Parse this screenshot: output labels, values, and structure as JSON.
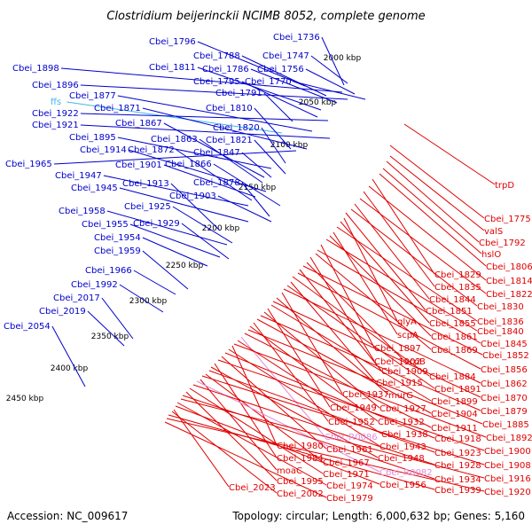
{
  "title": "Clostridium beijerinckii NCIMB 8052, complete genome",
  "accession_text": "Accession: NC_009617",
  "summary_text": "Topology: circular; Length: 6,000,632 bp; Genes: 5,160",
  "colors": {
    "reverse_label": "#0000cc",
    "forward_label": "#e00000",
    "rna_label": "#e38ad8",
    "trna_label": "#3fb8e8",
    "backbone": "#9a9a9a",
    "ruler_dots": "#2e8b2e"
  },
  "ruler": [
    {
      "label": "2000 kbp"
    },
    {
      "label": "2050 kbp"
    },
    {
      "label": "2100 kbp"
    },
    {
      "label": "2150 kbp"
    },
    {
      "label": "2200 kbp"
    },
    {
      "label": "2250 kbp"
    },
    {
      "label": "2300 kbp"
    },
    {
      "label": "2350 kbp"
    },
    {
      "label": "2400 kbp"
    },
    {
      "label": "2450 kbp"
    }
  ],
  "left_labels": [
    {
      "text": "Cbei_1736",
      "kind": "cds"
    },
    {
      "text": "Cbei_1796",
      "kind": "cds"
    },
    {
      "text": "Cbei_1788",
      "kind": "cds"
    },
    {
      "text": "Cbei_1747",
      "kind": "cds"
    },
    {
      "text": "Cbei_1811",
      "kind": "cds"
    },
    {
      "text": "Cbei_1786",
      "kind": "cds"
    },
    {
      "text": "Cbei_1756",
      "kind": "cds"
    },
    {
      "text": "Cbei_1898",
      "kind": "cds"
    },
    {
      "text": "Cbei_1795",
      "kind": "cds"
    },
    {
      "text": "Cbei_1770",
      "kind": "cds"
    },
    {
      "text": "Cbei_1896",
      "kind": "cds"
    },
    {
      "text": "Cbei_1791",
      "kind": "cds"
    },
    {
      "text": "Cbei_1877",
      "kind": "cds"
    },
    {
      "text": "ffs",
      "kind": "rna"
    },
    {
      "text": "Cbei_1810",
      "kind": "cds"
    },
    {
      "text": "Cbei_1922",
      "kind": "cds"
    },
    {
      "text": "Cbei_1871",
      "kind": "cds"
    },
    {
      "text": "Cbei_1921",
      "kind": "cds"
    },
    {
      "text": "Cbei_1867",
      "kind": "cds"
    },
    {
      "text": "Cbei_1820",
      "kind": "cds"
    },
    {
      "text": "Cbei_1895",
      "kind": "cds"
    },
    {
      "text": "Cbei_1863",
      "kind": "cds"
    },
    {
      "text": "Cbei_1821",
      "kind": "cds"
    },
    {
      "text": "Cbei_1914",
      "kind": "cds"
    },
    {
      "text": "Cbei_1872",
      "kind": "cds"
    },
    {
      "text": "Cbei_1847",
      "kind": "cds"
    },
    {
      "text": "Cbei_1965",
      "kind": "cds"
    },
    {
      "text": "Cbei_1901",
      "kind": "cds"
    },
    {
      "text": "Cbei_1866",
      "kind": "cds"
    },
    {
      "text": "Cbei_1947",
      "kind": "cds"
    },
    {
      "text": "Cbei_1878",
      "kind": "cds"
    },
    {
      "text": "Cbei_1945",
      "kind": "cds"
    },
    {
      "text": "Cbei_1913",
      "kind": "cds"
    },
    {
      "text": "Cbei_1903",
      "kind": "cds"
    },
    {
      "text": "Cbei_1958",
      "kind": "cds"
    },
    {
      "text": "Cbei_1925",
      "kind": "cds"
    },
    {
      "text": "Cbei_1955",
      "kind": "cds"
    },
    {
      "text": "Cbei_1929",
      "kind": "cds"
    },
    {
      "text": "Cbei_1954",
      "kind": "cds"
    },
    {
      "text": "Cbei_1959",
      "kind": "cds"
    },
    {
      "text": "Cbei_1966",
      "kind": "cds"
    },
    {
      "text": "Cbei_1992",
      "kind": "cds"
    },
    {
      "text": "Cbei_2017",
      "kind": "cds"
    },
    {
      "text": "Cbei_2019",
      "kind": "cds"
    },
    {
      "text": "Cbei_2054",
      "kind": "cds"
    }
  ],
  "right_labels": [
    {
      "text": "trpD",
      "kind": "cds"
    },
    {
      "text": "Cbei_1775",
      "kind": "cds"
    },
    {
      "text": "valS",
      "kind": "cds"
    },
    {
      "text": "Cbei_1792",
      "kind": "cds"
    },
    {
      "text": "hslO",
      "kind": "cds"
    },
    {
      "text": "Cbei_1806",
      "kind": "cds"
    },
    {
      "text": "Cbei_1829",
      "kind": "cds"
    },
    {
      "text": "Cbei_1814",
      "kind": "cds"
    },
    {
      "text": "Cbei_1835",
      "kind": "cds"
    },
    {
      "text": "Cbei_1822",
      "kind": "cds"
    },
    {
      "text": "Cbei_1844",
      "kind": "cds"
    },
    {
      "text": "Cbei_1830",
      "kind": "cds"
    },
    {
      "text": "Cbei_1851",
      "kind": "cds"
    },
    {
      "text": "glyA",
      "kind": "cds"
    },
    {
      "text": "Cbei_1855",
      "kind": "cds"
    },
    {
      "text": "Cbei_1836",
      "kind": "cds"
    },
    {
      "text": "scpA",
      "kind": "cds"
    },
    {
      "text": "Cbei_1861",
      "kind": "cds"
    },
    {
      "text": "Cbei_1840",
      "kind": "cds"
    },
    {
      "text": "Cbei_1897",
      "kind": "cds"
    },
    {
      "text": "Cbei_1845",
      "kind": "cds"
    },
    {
      "text": "Cbei_1869",
      "kind": "cds"
    },
    {
      "text": "Cbei_1902",
      "kind": "cds"
    },
    {
      "text": "scpB",
      "kind": "cds"
    },
    {
      "text": "Cbei_1852",
      "kind": "cds"
    },
    {
      "text": "Cbei_1909",
      "kind": "cds"
    },
    {
      "text": "Cbei_1856",
      "kind": "cds"
    },
    {
      "text": "Cbei_1884",
      "kind": "cds"
    },
    {
      "text": "Cbei_1915",
      "kind": "cds"
    },
    {
      "text": "Cbei_1891",
      "kind": "cds"
    },
    {
      "text": "Cbei_1862",
      "kind": "cds"
    },
    {
      "text": "Cbei_1937",
      "kind": "cds"
    },
    {
      "text": "murG",
      "kind": "cds"
    },
    {
      "text": "Cbei_1870",
      "kind": "cds"
    },
    {
      "text": "Cbei_1899",
      "kind": "cds"
    },
    {
      "text": "Cbei_1949",
      "kind": "cds"
    },
    {
      "text": "Cbei_1927",
      "kind": "cds"
    },
    {
      "text": "Cbei_1879",
      "kind": "cds"
    },
    {
      "text": "Cbei_1904",
      "kind": "cds"
    },
    {
      "text": "Cbei_1952",
      "kind": "cds"
    },
    {
      "text": "Cbei_1932",
      "kind": "cds"
    },
    {
      "text": "Cbei_1885",
      "kind": "cds"
    },
    {
      "text": "Cbei_1911",
      "kind": "cds"
    },
    {
      "text": "Cbei_R0086",
      "kind": "rna"
    },
    {
      "text": "Cbei_1938",
      "kind": "cds"
    },
    {
      "text": "Cbei_1892",
      "kind": "cds"
    },
    {
      "text": "Cbei_1980",
      "kind": "cds"
    },
    {
      "text": "Cbei_1943",
      "kind": "cds"
    },
    {
      "text": "Cbei_1918",
      "kind": "cds"
    },
    {
      "text": "Cbei_1961",
      "kind": "cds"
    },
    {
      "text": "Cbei_1900",
      "kind": "cds"
    },
    {
      "text": "Cbei_1984",
      "kind": "cds"
    },
    {
      "text": "Cbei_1948",
      "kind": "cds"
    },
    {
      "text": "Cbei_1923",
      "kind": "cds"
    },
    {
      "text": "Cbei_1967",
      "kind": "cds"
    },
    {
      "text": "Cbei_1908",
      "kind": "cds"
    },
    {
      "text": "moaC",
      "kind": "cds"
    },
    {
      "text": "Cbei_R0082",
      "kind": "rna"
    },
    {
      "text": "Cbei_1928",
      "kind": "cds"
    },
    {
      "text": "Cbei_1971",
      "kind": "cds"
    },
    {
      "text": "Cbei_1995",
      "kind": "cds"
    },
    {
      "text": "Cbei_1934",
      "kind": "cds"
    },
    {
      "text": "Cbei_1916",
      "kind": "cds"
    },
    {
      "text": "Cbei_2023",
      "kind": "cds"
    },
    {
      "text": "Cbei_1974",
      "kind": "cds"
    },
    {
      "text": "Cbei_1956",
      "kind": "cds"
    },
    {
      "text": "Cbei_2002",
      "kind": "cds"
    },
    {
      "text": "Cbei_1939",
      "kind": "cds"
    },
    {
      "text": "Cbei_1920",
      "kind": "cds"
    },
    {
      "text": "Cbei_1979",
      "kind": "cds"
    }
  ]
}
